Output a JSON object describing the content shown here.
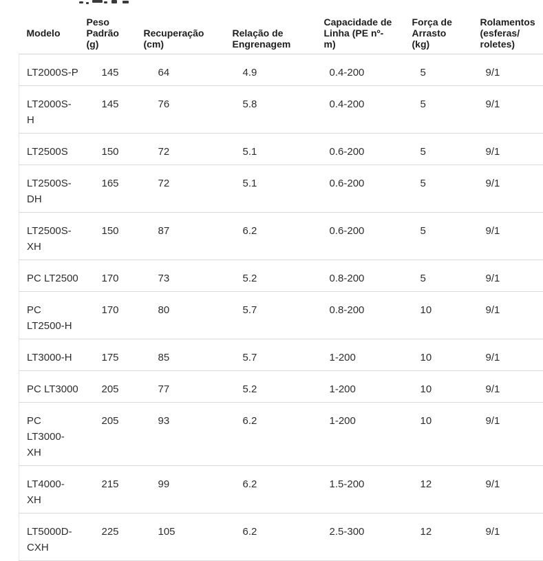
{
  "colors": {
    "background": "#ffffff",
    "header_text": "#1e1e1e",
    "body_text": "#2d2d2d",
    "row_separator": "#dadada",
    "left_border": "#e6e6e6"
  },
  "table": {
    "columns": [
      "Modelo",
      "Peso\nPadrão\n(g)",
      "Recuperação\n(cm)",
      "Relação de\nEngrenagem",
      "Capacidade de\nLinha (PE nº-\nm)",
      "Força de\nArrasto\n(kg)",
      "Rolamentos\n(esferas/\nroletes)"
    ],
    "rows": [
      [
        "LT2000S-P",
        "145",
        "64",
        "4.9",
        "0.4-200",
        "5",
        "9/1"
      ],
      [
        "LT2000S-\nH",
        "145",
        "76",
        "5.8",
        "0.4-200",
        "5",
        "9/1"
      ],
      [
        "LT2500S",
        "150",
        "72",
        "5.1",
        "0.6-200",
        "5",
        "9/1"
      ],
      [
        "LT2500S-\nDH",
        "165",
        "72",
        "5.1",
        "0.6-200",
        "5",
        "9/1"
      ],
      [
        "LT2500S-\nXH",
        "150",
        "87",
        "6.2",
        "0.6-200",
        "5",
        "9/1"
      ],
      [
        "PC LT2500",
        "170",
        "73",
        "5.2",
        "0.8-200",
        "5",
        "9/1"
      ],
      [
        "PC\nLT2500-H",
        "170",
        "80",
        "5.7",
        "0.8-200",
        "10",
        "9/1"
      ],
      [
        "LT3000-H",
        "175",
        "85",
        "5.7",
        "1-200",
        "10",
        "9/1"
      ],
      [
        "PC LT3000",
        "205",
        "77",
        "5.2",
        "1-200",
        "10",
        "9/1"
      ],
      [
        "PC\nLT3000-\nXH",
        "205",
        "93",
        "6.2",
        "1-200",
        "10",
        "9/1"
      ],
      [
        "LT4000-\nXH",
        "215",
        "99",
        "6.2",
        "1.5-200",
        "12",
        "9/1"
      ],
      [
        "LT5000D-\nCXH",
        "225",
        "105",
        "6.2",
        "2.5-300",
        "12",
        "9/1"
      ]
    ]
  }
}
